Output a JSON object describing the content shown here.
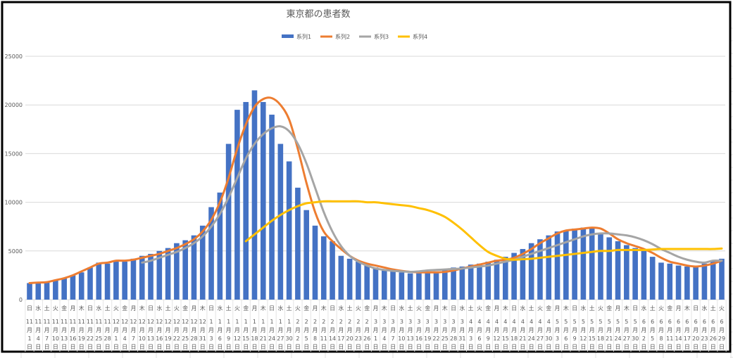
{
  "chart_data": {
    "type": "bar+line",
    "title": "東京都の患者数",
    "xlabel": "",
    "ylabel": "",
    "ylim": [
      0,
      25000
    ],
    "yticks": [
      "0",
      "5000",
      "10000",
      "15000",
      "20000",
      "25000"
    ],
    "grid": true,
    "legend_position": "bottom",
    "month_suffix": "月",
    "day_suffix": "日",
    "x_weekdays": [
      "日",
      "水",
      "土",
      "火",
      "金",
      "月",
      "木",
      "日",
      "水",
      "土",
      "火",
      "金",
      "月",
      "木",
      "日",
      "水",
      "土",
      "火",
      "金",
      "月",
      "木",
      "日",
      "水",
      "土",
      "火",
      "金",
      "月",
      "木",
      "日",
      "水",
      "土",
      "火",
      "金",
      "月",
      "木",
      "日",
      "水",
      "土",
      "火",
      "金",
      "月",
      "木",
      "日",
      "水",
      "土",
      "火",
      "金",
      "月",
      "木",
      "日",
      "水",
      "土",
      "火",
      "金",
      "月",
      "木",
      "日",
      "水",
      "土",
      "火",
      "金",
      "月",
      "木",
      "日",
      "水",
      "土",
      "火",
      "金",
      "月",
      "木",
      "日",
      "水",
      "土",
      "火",
      "金",
      "月",
      "木",
      "日",
      "水",
      "土",
      "火"
    ],
    "x_months": [
      "11",
      "11",
      "11",
      "11",
      "11",
      "11",
      "11",
      "11",
      "11",
      "11",
      "12",
      "12",
      "12",
      "12",
      "12",
      "12",
      "12",
      "12",
      "12",
      "12",
      "12",
      "1",
      "1",
      "1",
      "1",
      "1",
      "1",
      "1",
      "1",
      "1",
      "1",
      "2",
      "2",
      "2",
      "2",
      "2",
      "2",
      "2",
      "2",
      "2",
      "3",
      "3",
      "3",
      "3",
      "3",
      "3",
      "3",
      "3",
      "3",
      "3",
      "3",
      "4",
      "4",
      "4",
      "4",
      "4",
      "4",
      "4",
      "4",
      "4",
      "4",
      "5",
      "5",
      "5",
      "5",
      "5",
      "5",
      "5",
      "5",
      "5",
      "5",
      "6",
      "6",
      "6",
      "6",
      "6",
      "6",
      "6",
      "6",
      "6",
      "6"
    ],
    "x_days": [
      "1",
      "4",
      "7",
      "10",
      "13",
      "16",
      "19",
      "22",
      "25",
      "28",
      "1",
      "4",
      "7",
      "10",
      "13",
      "16",
      "19",
      "22",
      "25",
      "28",
      "31",
      "3",
      "6",
      "9",
      "12",
      "15",
      "18",
      "21",
      "24",
      "27",
      "30",
      "2",
      "5",
      "8",
      "11",
      "14",
      "17",
      "20",
      "23",
      "26",
      "1",
      "4",
      "7",
      "10",
      "13",
      "16",
      "19",
      "22",
      "25",
      "28",
      "31",
      "3",
      "6",
      "9",
      "12",
      "15",
      "18",
      "21",
      "24",
      "27",
      "30",
      "3",
      "6",
      "9",
      "12",
      "15",
      "18",
      "21",
      "24",
      "27",
      "30",
      "2",
      "5",
      "8",
      "11",
      "14",
      "17",
      "20",
      "23",
      "26",
      "29"
    ],
    "series": [
      {
        "name": "系列1",
        "kind": "bar",
        "color": "#4472C4",
        "values": [
          1700,
          1700,
          1800,
          2000,
          2200,
          2500,
          2800,
          3300,
          3800,
          3700,
          3900,
          3900,
          4200,
          4500,
          4700,
          5000,
          5300,
          5800,
          6100,
          6600,
          7600,
          9500,
          11000,
          16000,
          19500,
          20300,
          21500,
          20300,
          19000,
          16000,
          14200,
          11500,
          9200,
          7600,
          6500,
          6000,
          4500,
          4200,
          3900,
          3500,
          3300,
          3100,
          2900,
          2800,
          2700,
          2700,
          2800,
          2900,
          3100,
          3300,
          3400,
          3600,
          3700,
          3900,
          4100,
          4400,
          4800,
          5200,
          5800,
          6200,
          6600,
          7000,
          7100,
          7300,
          7400,
          7300,
          6800,
          6400,
          6000,
          5600,
          5300,
          5000,
          4400,
          3800,
          3700,
          3500,
          3400,
          3500,
          3700,
          4000,
          4200
        ]
      },
      {
        "name": "系列2",
        "kind": "line",
        "color": "#ED7D31",
        "values": [
          1700,
          1750,
          1800,
          2000,
          2200,
          2500,
          2900,
          3300,
          3700,
          3800,
          4000,
          4000,
          4100,
          4300,
          4500,
          4700,
          5000,
          5300,
          5700,
          6200,
          7000,
          8200,
          10000,
          12500,
          15500,
          18000,
          19800,
          20600,
          20700,
          20000,
          18500,
          15500,
          12000,
          9000,
          7000,
          6000,
          5200,
          4500,
          4000,
          3700,
          3500,
          3300,
          3100,
          2950,
          2850,
          2800,
          2800,
          2800,
          2850,
          3000,
          3200,
          3400,
          3600,
          3800,
          4000,
          4100,
          4300,
          4700,
          5200,
          5800,
          6300,
          6800,
          7100,
          7200,
          7300,
          7400,
          7300,
          6800,
          6200,
          5800,
          5500,
          5200,
          4800,
          4300,
          3900,
          3700,
          3500,
          3400,
          3500,
          3700,
          4000
        ]
      },
      {
        "name": "系列3",
        "kind": "line",
        "color": "#A5A5A5",
        "values": [
          null,
          null,
          null,
          null,
          null,
          null,
          null,
          null,
          null,
          null,
          null,
          null,
          null,
          3800,
          4000,
          4300,
          4600,
          4900,
          5300,
          5800,
          6500,
          7500,
          8800,
          10500,
          12500,
          14500,
          16000,
          17000,
          17600,
          17800,
          17300,
          16000,
          14000,
          11500,
          9000,
          7000,
          5500,
          4500,
          3900,
          3500,
          3200,
          3050,
          2950,
          2900,
          2850,
          2900,
          3000,
          3050,
          3100,
          3150,
          3200,
          3300,
          3400,
          3500,
          3700,
          3900,
          4100,
          4400,
          4700,
          5000,
          5300,
          5600,
          5900,
          6200,
          6500,
          6700,
          6800,
          6800,
          6700,
          6600,
          6400,
          6100,
          5700,
          5200,
          4800,
          4400,
          4100,
          3900,
          3800,
          4000,
          4000
        ]
      },
      {
        "name": "系列4",
        "kind": "line",
        "color": "#FFC000",
        "values": [
          null,
          null,
          null,
          null,
          null,
          null,
          null,
          null,
          null,
          null,
          null,
          null,
          null,
          null,
          null,
          null,
          null,
          null,
          null,
          null,
          null,
          null,
          null,
          null,
          null,
          6000,
          6700,
          7400,
          8100,
          8700,
          9200,
          9600,
          9900,
          10000,
          10100,
          10100,
          10100,
          10100,
          10100,
          10000,
          10000,
          9900,
          9800,
          9700,
          9600,
          9400,
          9200,
          8900,
          8500,
          7900,
          7200,
          6400,
          5600,
          4900,
          4500,
          4200,
          4100,
          4150,
          4200,
          4300,
          4400,
          4500,
          4600,
          4700,
          4800,
          4900,
          5000,
          5000,
          5100,
          5100,
          5100,
          5100,
          5150,
          5200,
          5200,
          5200,
          5200,
          5200,
          5200,
          5200,
          5250
        ]
      }
    ]
  }
}
